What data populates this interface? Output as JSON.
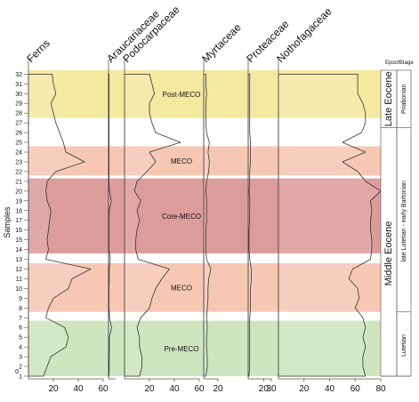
{
  "chart_data": {
    "type": "area",
    "y_axis": {
      "label": "Samples",
      "range": [
        1,
        32
      ],
      "ticks": [
        "1",
        "2",
        "3",
        "4",
        "5",
        "6",
        "7",
        "8",
        "9",
        "10",
        "11",
        "12",
        "13",
        "14",
        "15",
        "16",
        "17",
        "18",
        "19",
        "20",
        "21",
        "22",
        "23",
        "24",
        "25",
        "26",
        "27",
        "28",
        "29",
        "30",
        "31",
        "32"
      ]
    },
    "bands": [
      {
        "label": "Post-MECO",
        "from": 27.5,
        "to": 32.4,
        "color": "#f5e9a0"
      },
      {
        "label": "MECO",
        "from": 21.6,
        "to": 24.6,
        "color": "#f6c8b4"
      },
      {
        "label": "Core-MECO",
        "from": 13.6,
        "to": 21.3,
        "color": "#dc9c9c"
      },
      {
        "label": "MECO",
        "from": 7.6,
        "to": 12.6,
        "color": "#f6c8b4"
      },
      {
        "label": "Pre-MECO",
        "from": 1,
        "to": 6.7,
        "color": "#cfe5bd"
      }
    ],
    "series": [
      {
        "name": "Ferns",
        "xlim": [
          0,
          60
        ],
        "ticks": [
          20,
          40,
          60
        ],
        "values": [
          12,
          15,
          18,
          30,
          32,
          29,
          14,
          16,
          20,
          32,
          35,
          50,
          14,
          16,
          15,
          16,
          17,
          18,
          15,
          14,
          15,
          22,
          45,
          30,
          28,
          25,
          22,
          20,
          18,
          22,
          20,
          19
        ]
      },
      {
        "name": "Araucariaceae",
        "xlim": [
          0,
          5
        ],
        "ticks": [],
        "values": [
          0.3,
          0.5,
          0.5,
          0.6,
          0.6,
          2.2,
          0.6,
          0.4,
          0.4,
          0.4,
          0.5,
          0.5,
          1.2,
          0.4,
          0.4,
          0.4,
          0.4,
          0.5,
          2.0,
          0.6,
          0.4,
          0.4,
          0.4,
          0.4,
          0.4,
          0.4,
          0.4,
          0.4,
          0.4,
          0.4,
          0.4,
          0.4
        ]
      },
      {
        "name": "Podocarpaceae",
        "xlim": [
          0,
          60
        ],
        "ticks": [
          20,
          40,
          60
        ],
        "values": [
          12,
          14,
          14,
          12,
          12,
          10,
          13,
          20,
          22,
          25,
          30,
          36,
          11,
          9,
          9,
          10,
          12,
          10,
          13,
          8,
          10,
          18,
          25,
          20,
          45,
          25,
          22,
          20,
          20,
          24,
          22,
          20
        ]
      },
      {
        "name": "Myrtaceae",
        "xlim": [
          0,
          20
        ],
        "ticks": [
          20
        ],
        "values": [
          3,
          5,
          5,
          4,
          4,
          5,
          4,
          5,
          6,
          6,
          7,
          10,
          4,
          3,
          3,
          3,
          4,
          4,
          4,
          3,
          4,
          7,
          8,
          6,
          8,
          4,
          3,
          3,
          3,
          4,
          3,
          3
        ]
      },
      {
        "name": "Proteaceae",
        "xlim": [
          0,
          30
        ],
        "ticks": [
          20,
          30
        ],
        "values": [
          1,
          2,
          2,
          2,
          2,
          2,
          2,
          3,
          3,
          3,
          4,
          4,
          2,
          1,
          1,
          1,
          2,
          2,
          2,
          1,
          2,
          2,
          3,
          3,
          3,
          2,
          2,
          2,
          2,
          2,
          2,
          2
        ]
      },
      {
        "name": "Nothofagaceae",
        "xlim": [
          0,
          80
        ],
        "ticks": [
          20,
          40,
          60,
          80
        ],
        "values": [
          68,
          66,
          66,
          68,
          66,
          68,
          66,
          60,
          63,
          62,
          55,
          58,
          72,
          73,
          73,
          72,
          72,
          73,
          72,
          80,
          68,
          62,
          50,
          68,
          50,
          65,
          68,
          68,
          66,
          62,
          62,
          62
        ]
      }
    ],
    "epoch_header": "Epoch",
    "stage_header": "Stage",
    "epochs": [
      {
        "label": "Late Eocene",
        "from": 26.5,
        "to": 32.4
      },
      {
        "label": "Middle Eocene",
        "from": 1,
        "to": 26.2
      }
    ],
    "stages": [
      {
        "label": "Priabonian",
        "from": 26.5,
        "to": 32.4
      },
      {
        "label": "late Lutetian - early Bartonian",
        "from": 7.6,
        "to": 26.2
      },
      {
        "label": "Lutetian",
        "from": 1,
        "to": 7.3
      }
    ]
  }
}
